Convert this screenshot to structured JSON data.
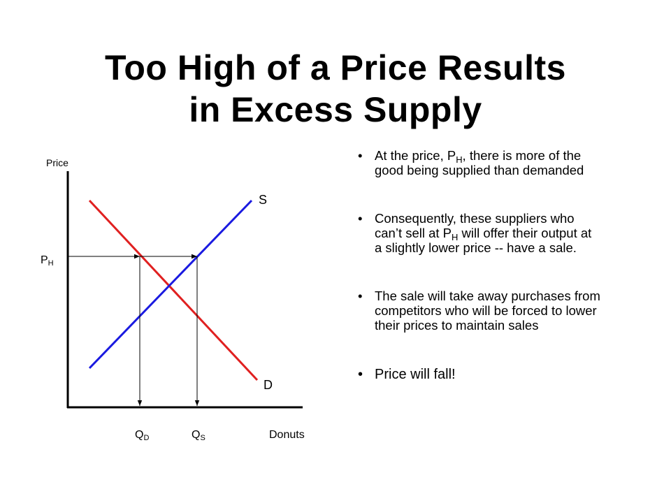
{
  "title": [
    "Too High of a Price Results",
    "in Excess Supply"
  ],
  "diagram": {
    "y_axis_label": "Price",
    "x_axis_label": "Donuts",
    "supply_label": "S",
    "demand_label": "D",
    "price_label": {
      "main": "P",
      "sub": "H"
    },
    "quantity_demanded_label": {
      "main": "Q",
      "sub": "D"
    },
    "quantity_supplied_label": {
      "main": "Q",
      "sub": "S"
    }
  },
  "bullets": [
    [
      "At the price, P",
      "H",
      ", there is more of the good being supplied than demanded"
    ],
    [
      "Consequently, these suppliers who can’t sell at P",
      "H",
      " will offer their output at a slightly lower price -- have a sale."
    ],
    [
      "The sale will take away purchases from competitors who will be forced to lower their prices to maintain sales"
    ],
    [
      "Price will fall!"
    ]
  ]
}
